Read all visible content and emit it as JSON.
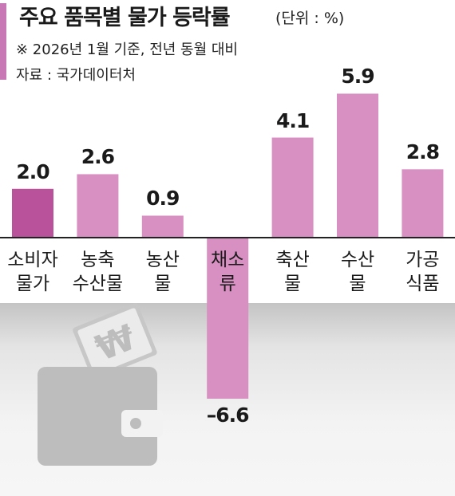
{
  "header": {
    "title": "주요 품목별 물가 등락률",
    "unit": "(단위 : %)",
    "note": "※ 2026년 1월 기준, 전년 동월 대비",
    "source": "자료 : 국가데이터처"
  },
  "colors": {
    "highlight_bar": "#b9529a",
    "bar": "#d88fc1",
    "accent": "#c878b4",
    "baseline": "#222222"
  },
  "chart_data": {
    "type": "bar",
    "title": "주요 품목별 물가 등락률",
    "unit": "%",
    "categories": [
      "소비자 물가",
      "농축 수산물",
      "농산 물",
      "채소 류",
      "축산 물",
      "수산 물",
      "가공 식품"
    ],
    "category_lines": [
      [
        "소비자",
        "물가"
      ],
      [
        "농축",
        "수산물"
      ],
      [
        "농산",
        "물"
      ],
      [
        "채소",
        "류"
      ],
      [
        "축산",
        "물"
      ],
      [
        "수산",
        "물"
      ],
      [
        "가공",
        "식품"
      ]
    ],
    "values": [
      2.0,
      2.6,
      0.9,
      -6.6,
      4.1,
      5.9,
      2.8
    ],
    "value_labels": [
      "2.0",
      "2.6",
      "0.9",
      "–6.6",
      "4.1",
      "5.9",
      "2.8"
    ],
    "highlight_index": 0
  }
}
